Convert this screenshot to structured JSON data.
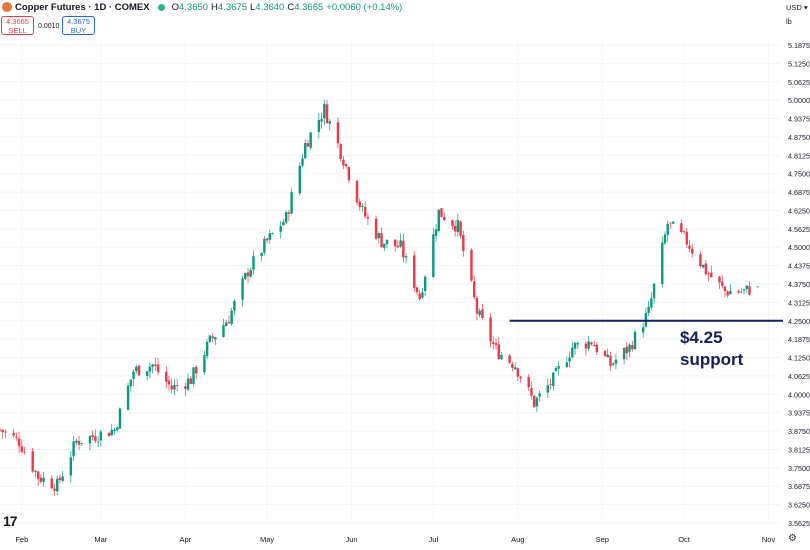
{
  "header": {
    "title": "Copper Futures · 1D · COMEX",
    "o_label": "O",
    "o_value": "4.3650",
    "h_label": "H",
    "h_value": "4.3675",
    "l_label": "L",
    "l_value": "4.3640",
    "c_label": "C",
    "c_value": "4.3665",
    "change": "+0.0060 (+0.14%)",
    "sell_price": "4.3665",
    "sell_label": "SELL",
    "buy_price": "4.3675",
    "buy_label": "BUY",
    "spread": "0.0010",
    "currency": "USD",
    "unit": "lb"
  },
  "colors": {
    "up": "#089981",
    "down": "#f23645",
    "support": "#131f5b",
    "text": "#131722"
  },
  "annotation": {
    "line1": "$4.25",
    "line2": "support"
  },
  "chart_data": {
    "type": "candlestick",
    "title": "Copper Futures · 1D · COMEX",
    "x_ticks": [
      "Feb",
      "Mar",
      "Apr",
      "May",
      "Jun",
      "Jul",
      "Aug",
      "Sep",
      "Oct",
      "Nov"
    ],
    "y_ticks": [
      "5.1875",
      "5.1250",
      "5.0625",
      "5.0000",
      "4.9375",
      "4.8750",
      "4.8125",
      "4.7500",
      "4.6875",
      "4.6250",
      "4.5625",
      "4.5000",
      "4.4375",
      "4.3750",
      "4.3125",
      "4.2500",
      "4.1875",
      "4.1250",
      "4.0625",
      "4.0000",
      "3.9375",
      "3.8750",
      "3.8125",
      "3.7500",
      "3.6875",
      "3.6250",
      "3.5625"
    ],
    "ylim": [
      3.5625,
      5.1875
    ],
    "support_level": 4.25,
    "series": [
      {
        "date": "2024-01-24",
        "close": 3.88
      },
      {
        "date": "2024-01-31",
        "close": 3.84
      },
      {
        "date": "2024-02-07",
        "close": 3.72
      },
      {
        "date": "2024-02-14",
        "close": 3.69
      },
      {
        "date": "2024-02-21",
        "close": 3.84
      },
      {
        "date": "2024-02-28",
        "close": 3.86
      },
      {
        "date": "2024-03-06",
        "close": 3.88
      },
      {
        "date": "2024-03-13",
        "close": 4.08
      },
      {
        "date": "2024-03-20",
        "close": 4.1
      },
      {
        "date": "2024-03-27",
        "close": 4.02
      },
      {
        "date": "2024-04-03",
        "close": 4.05
      },
      {
        "date": "2024-04-10",
        "close": 4.18
      },
      {
        "date": "2024-04-17",
        "close": 4.26
      },
      {
        "date": "2024-04-24",
        "close": 4.42
      },
      {
        "date": "2024-05-01",
        "close": 4.52
      },
      {
        "date": "2024-05-08",
        "close": 4.6
      },
      {
        "date": "2024-05-15",
        "close": 4.85
      },
      {
        "date": "2024-05-22",
        "close": 4.97
      },
      {
        "date": "2024-05-29",
        "close": 4.8
      },
      {
        "date": "2024-06-05",
        "close": 4.62
      },
      {
        "date": "2024-06-12",
        "close": 4.52
      },
      {
        "date": "2024-06-19",
        "close": 4.5
      },
      {
        "date": "2024-06-26",
        "close": 4.33
      },
      {
        "date": "2024-07-03",
        "close": 4.62
      },
      {
        "date": "2024-07-10",
        "close": 4.57
      },
      {
        "date": "2024-07-17",
        "close": 4.28
      },
      {
        "date": "2024-07-24",
        "close": 4.15
      },
      {
        "date": "2024-07-31",
        "close": 4.1
      },
      {
        "date": "2024-08-07",
        "close": 3.97
      },
      {
        "date": "2024-08-14",
        "close": 4.05
      },
      {
        "date": "2024-08-21",
        "close": 4.16
      },
      {
        "date": "2024-08-28",
        "close": 4.18
      },
      {
        "date": "2024-09-04",
        "close": 4.1
      },
      {
        "date": "2024-09-11",
        "close": 4.16
      },
      {
        "date": "2024-09-18",
        "close": 4.28
      },
      {
        "date": "2024-09-25",
        "close": 4.58
      },
      {
        "date": "2024-10-02",
        "close": 4.52
      },
      {
        "date": "2024-10-09",
        "close": 4.42
      },
      {
        "date": "2024-10-16",
        "close": 4.35
      },
      {
        "date": "2024-10-23",
        "close": 4.35
      },
      {
        "date": "2024-10-28",
        "close": 4.3665
      }
    ]
  }
}
